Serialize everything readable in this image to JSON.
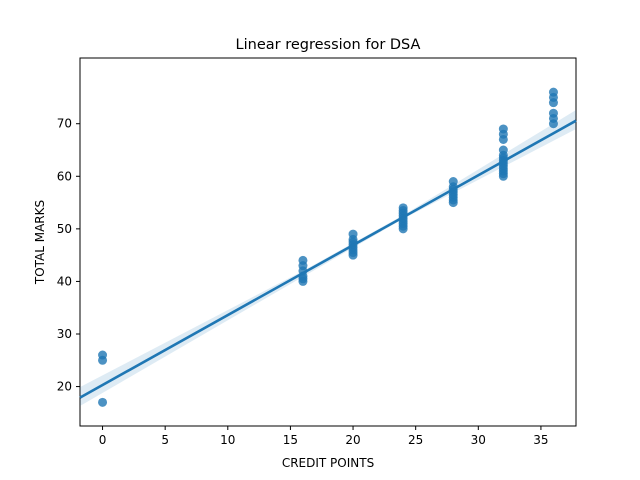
{
  "chart_data": {
    "type": "scatter",
    "title": "Linear regression for DSA",
    "xlabel": "CREDIT POINTS",
    "ylabel": "TOTAL MARKS",
    "xlim": [
      -1.8,
      37.8
    ],
    "ylim": [
      12.5,
      82.5
    ],
    "x_ticks": [
      0,
      5,
      10,
      15,
      20,
      25,
      30,
      35
    ],
    "y_ticks": [
      20,
      30,
      40,
      50,
      60,
      70
    ],
    "grid": false,
    "legend": "none",
    "color": "#1f77b4",
    "points": [
      {
        "x": 0,
        "y": 26
      },
      {
        "x": 0,
        "y": 25
      },
      {
        "x": 0,
        "y": 17
      },
      {
        "x": 16,
        "y": 44
      },
      {
        "x": 16,
        "y": 43
      },
      {
        "x": 16,
        "y": 42
      },
      {
        "x": 16,
        "y": 41
      },
      {
        "x": 16,
        "y": 40.5
      },
      {
        "x": 16,
        "y": 40
      },
      {
        "x": 20,
        "y": 49
      },
      {
        "x": 20,
        "y": 48
      },
      {
        "x": 20,
        "y": 47.5
      },
      {
        "x": 20,
        "y": 47
      },
      {
        "x": 20,
        "y": 46.5
      },
      {
        "x": 20,
        "y": 46
      },
      {
        "x": 20,
        "y": 45.5
      },
      {
        "x": 20,
        "y": 45
      },
      {
        "x": 24,
        "y": 54
      },
      {
        "x": 24,
        "y": 53.5
      },
      {
        "x": 24,
        "y": 53
      },
      {
        "x": 24,
        "y": 52.5
      },
      {
        "x": 24,
        "y": 52
      },
      {
        "x": 24,
        "y": 51.5
      },
      {
        "x": 24,
        "y": 51
      },
      {
        "x": 24,
        "y": 50.5
      },
      {
        "x": 24,
        "y": 50
      },
      {
        "x": 28,
        "y": 59
      },
      {
        "x": 28,
        "y": 58
      },
      {
        "x": 28,
        "y": 57.5
      },
      {
        "x": 28,
        "y": 57
      },
      {
        "x": 28,
        "y": 56.5
      },
      {
        "x": 28,
        "y": 56
      },
      {
        "x": 28,
        "y": 55.5
      },
      {
        "x": 28,
        "y": 55
      },
      {
        "x": 32,
        "y": 69
      },
      {
        "x": 32,
        "y": 68
      },
      {
        "x": 32,
        "y": 67
      },
      {
        "x": 32,
        "y": 65
      },
      {
        "x": 32,
        "y": 64
      },
      {
        "x": 32,
        "y": 63.5
      },
      {
        "x": 32,
        "y": 63
      },
      {
        "x": 32,
        "y": 62.5
      },
      {
        "x": 32,
        "y": 62
      },
      {
        "x": 32,
        "y": 61.5
      },
      {
        "x": 32,
        "y": 61
      },
      {
        "x": 32,
        "y": 60.5
      },
      {
        "x": 32,
        "y": 60
      },
      {
        "x": 36,
        "y": 76
      },
      {
        "x": 36,
        "y": 75
      },
      {
        "x": 36,
        "y": 74
      },
      {
        "x": 36,
        "y": 72
      },
      {
        "x": 36,
        "y": 71
      },
      {
        "x": 36,
        "y": 70
      }
    ],
    "regression": {
      "intercept": 20.3,
      "slope": 1.33,
      "ci_band": [
        {
          "x": -1.8,
          "lo": 16.3,
          "hi": 19.9
        },
        {
          "x": 16,
          "lo": 40.9,
          "hi": 42.0
        },
        {
          "x": 24,
          "lo": 51.9,
          "hi": 52.6
        },
        {
          "x": 37.8,
          "lo": 69.0,
          "hi": 72.6
        }
      ]
    }
  }
}
